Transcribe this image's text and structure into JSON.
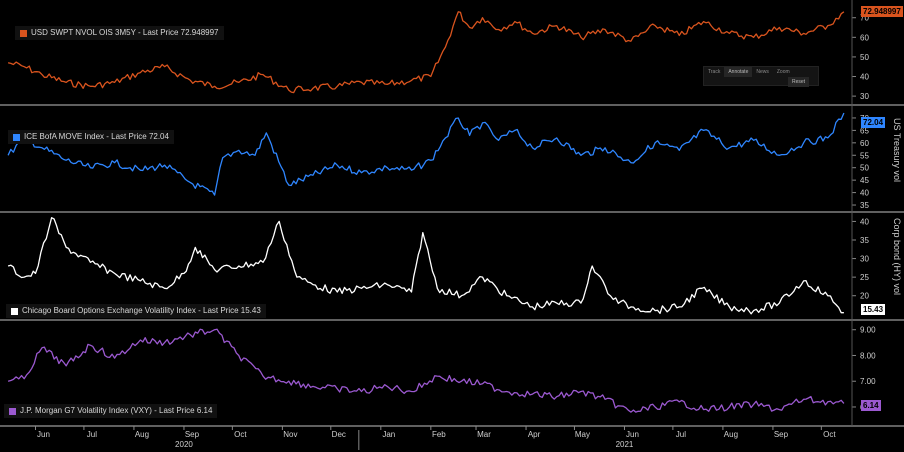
{
  "colors": {
    "background": "#000000",
    "divider": "#9a9a9a",
    "series1": "#d9541e",
    "series2": "#2f86ff",
    "series3": "#ffffff",
    "series4": "#9b59d0",
    "grid": "#2b2b2b"
  },
  "toolbar": {
    "items": [
      "Track",
      "Annotate",
      "News",
      "Zoom",
      "Reset"
    ]
  },
  "vertical_labels": {
    "panel2": "US Treasury vol",
    "panel3": "Corp  bond  (HY) vol"
  },
  "chart_data": [
    {
      "type": "line",
      "legend": "USD SWPT NVOL OIS 3M5Y - Last Price 72.948997",
      "last_value_label": "72.948997",
      "last_value": 72.948997,
      "color": "#d9541e",
      "ylim": [
        27,
        77
      ],
      "yticks": [
        30,
        40,
        50,
        60,
        70
      ],
      "x": [
        "2020-05-15",
        "2020-05-25",
        "2020-06-05",
        "2020-06-20",
        "2020-07-05",
        "2020-07-20",
        "2020-08-05",
        "2020-08-20",
        "2020-09-05",
        "2020-09-20",
        "2020-10-05",
        "2020-10-20",
        "2020-11-05",
        "2020-11-20",
        "2020-12-05",
        "2020-12-20",
        "2021-01-05",
        "2021-01-20",
        "2021-02-01",
        "2021-02-10",
        "2021-02-18",
        "2021-02-25",
        "2021-03-05",
        "2021-03-15",
        "2021-03-25",
        "2021-04-05",
        "2021-04-20",
        "2021-05-05",
        "2021-05-20",
        "2021-06-05",
        "2021-06-20",
        "2021-07-05",
        "2021-07-20",
        "2021-08-05",
        "2021-08-20",
        "2021-09-05",
        "2021-09-20",
        "2021-10-05",
        "2021-10-15"
      ],
      "y": [
        47,
        45,
        41,
        37,
        35,
        37,
        42,
        45,
        38,
        35,
        37,
        41,
        33,
        34,
        35,
        37,
        36,
        38,
        40,
        55,
        73,
        65,
        70,
        64,
        68,
        62,
        66,
        60,
        64,
        58,
        66,
        61,
        68,
        62,
        60,
        65,
        62,
        66,
        73
      ]
    },
    {
      "type": "line",
      "legend": "ICE BofA MOVE Index - Last Price 72.04",
      "last_value_label": "72.04",
      "last_value": 72.04,
      "color": "#2f86ff",
      "ylim": [
        33,
        74
      ],
      "yticks": [
        35,
        40,
        45,
        50,
        55,
        60,
        65,
        70
      ],
      "x": [
        "2020-05-15",
        "2020-05-25",
        "2020-06-05",
        "2020-06-20",
        "2020-07-05",
        "2020-07-20",
        "2020-08-05",
        "2020-08-20",
        "2020-09-05",
        "2020-09-20",
        "2020-09-25",
        "2020-10-05",
        "2020-10-15",
        "2020-10-22",
        "2020-11-05",
        "2020-11-20",
        "2020-12-05",
        "2020-12-20",
        "2021-01-05",
        "2021-01-20",
        "2021-02-01",
        "2021-02-10",
        "2021-02-18",
        "2021-02-25",
        "2021-03-05",
        "2021-03-15",
        "2021-03-25",
        "2021-04-05",
        "2021-04-20",
        "2021-05-05",
        "2021-05-20",
        "2021-06-05",
        "2021-06-20",
        "2021-07-05",
        "2021-07-20",
        "2021-08-05",
        "2021-08-20",
        "2021-09-05",
        "2021-09-20",
        "2021-10-05",
        "2021-10-15"
      ],
      "y": [
        55,
        62,
        58,
        53,
        50,
        52,
        49,
        51,
        44,
        39,
        54,
        57,
        55,
        64,
        43,
        47,
        51,
        48,
        50,
        49,
        53,
        62,
        70,
        63,
        68,
        61,
        65,
        58,
        62,
        55,
        58,
        52,
        60,
        57,
        65,
        58,
        61,
        55,
        60,
        62,
        72
      ]
    },
    {
      "type": "line",
      "legend": "Chicago Board Options Exchange Volatility Index - Last Price 15.43",
      "last_value_label": "15.43",
      "last_value": 15.43,
      "color": "#ffffff",
      "ylim": [
        14,
        42
      ],
      "yticks": [
        20,
        25,
        30,
        35,
        40
      ],
      "x": [
        "2020-05-15",
        "2020-05-25",
        "2020-06-01",
        "2020-06-11",
        "2020-06-20",
        "2020-07-05",
        "2020-07-20",
        "2020-08-05",
        "2020-08-20",
        "2020-09-01",
        "2020-09-08",
        "2020-09-20",
        "2020-10-05",
        "2020-10-20",
        "2020-10-30",
        "2020-11-10",
        "2020-11-20",
        "2020-12-05",
        "2020-12-20",
        "2021-01-05",
        "2021-01-20",
        "2021-01-27",
        "2021-02-05",
        "2021-02-20",
        "2021-03-05",
        "2021-03-20",
        "2021-04-05",
        "2021-04-20",
        "2021-05-05",
        "2021-05-12",
        "2021-05-25",
        "2021-06-05",
        "2021-06-20",
        "2021-07-05",
        "2021-07-19",
        "2021-08-05",
        "2021-08-20",
        "2021-09-05",
        "2021-09-20",
        "2021-10-05",
        "2021-10-15"
      ],
      "y": [
        28,
        25,
        26,
        41,
        33,
        29,
        26,
        24,
        22,
        26,
        33,
        27,
        28,
        29,
        40,
        25,
        23,
        21,
        22,
        23,
        21,
        37,
        22,
        20,
        25,
        20,
        17,
        18,
        18,
        28,
        19,
        17,
        16,
        17,
        22,
        17,
        16,
        18,
        24,
        20,
        15.43
      ]
    },
    {
      "type": "line",
      "legend": "J.P. Morgan G7 Volatility Index (VXY) - Last Price 6.14",
      "last_value_label": "6.14",
      "last_value": 6.14,
      "color": "#9b59d0",
      "ylim": [
        5.3,
        9.3
      ],
      "yticks": [
        "9.00",
        "8.00",
        "7.00",
        "6.00"
      ],
      "ytick_values": [
        9,
        8,
        7,
        6
      ],
      "x": [
        "2020-05-15",
        "2020-05-25",
        "2020-06-05",
        "2020-06-20",
        "2020-07-05",
        "2020-07-20",
        "2020-08-05",
        "2020-08-20",
        "2020-09-05",
        "2020-09-20",
        "2020-10-05",
        "2020-10-20",
        "2020-11-05",
        "2020-11-20",
        "2020-12-05",
        "2020-12-20",
        "2021-01-05",
        "2021-01-20",
        "2021-02-05",
        "2021-02-20",
        "2021-03-05",
        "2021-03-20",
        "2021-04-05",
        "2021-04-20",
        "2021-05-05",
        "2021-05-20",
        "2021-06-05",
        "2021-06-20",
        "2021-07-05",
        "2021-07-20",
        "2021-08-05",
        "2021-08-20",
        "2021-09-05",
        "2021-09-20",
        "2021-10-05",
        "2021-10-15"
      ],
      "y": [
        7.0,
        7.1,
        8.3,
        7.6,
        8.4,
        7.9,
        8.6,
        8.5,
        8.8,
        9.0,
        8.0,
        7.2,
        7.0,
        6.8,
        6.7,
        6.6,
        6.8,
        6.6,
        7.2,
        7.0,
        6.9,
        6.6,
        6.5,
        6.4,
        6.6,
        6.3,
        5.8,
        6.0,
        6.2,
        5.9,
        6.0,
        6.1,
        5.9,
        6.3,
        6.2,
        6.14
      ]
    }
  ],
  "x_axis": {
    "type": "time",
    "start": "2020-05-10",
    "end": "2021-10-20",
    "months": [
      {
        "label": "Jun",
        "date": "2020-06-01"
      },
      {
        "label": "Jul",
        "date": "2020-07-01"
      },
      {
        "label": "Aug",
        "date": "2020-08-01"
      },
      {
        "label": "Sep",
        "date": "2020-09-01"
      },
      {
        "label": "Oct",
        "date": "2020-10-01"
      },
      {
        "label": "Nov",
        "date": "2020-11-01"
      },
      {
        "label": "Dec",
        "date": "2020-12-01"
      },
      {
        "label": "Jan",
        "date": "2021-01-01"
      },
      {
        "label": "Feb",
        "date": "2021-02-01"
      },
      {
        "label": "Mar",
        "date": "2021-03-01"
      },
      {
        "label": "Apr",
        "date": "2021-04-01"
      },
      {
        "label": "May",
        "date": "2021-05-01"
      },
      {
        "label": "Jun",
        "date": "2021-06-01"
      },
      {
        "label": "Jul",
        "date": "2021-07-01"
      },
      {
        "label": "Aug",
        "date": "2021-08-01"
      },
      {
        "label": "Sep",
        "date": "2021-09-01"
      },
      {
        "label": "Oct",
        "date": "2021-10-01"
      }
    ],
    "years": [
      {
        "label": "2020",
        "date": "2020-09-01"
      },
      {
        "label": "2021",
        "date": "2021-06-01"
      }
    ]
  }
}
